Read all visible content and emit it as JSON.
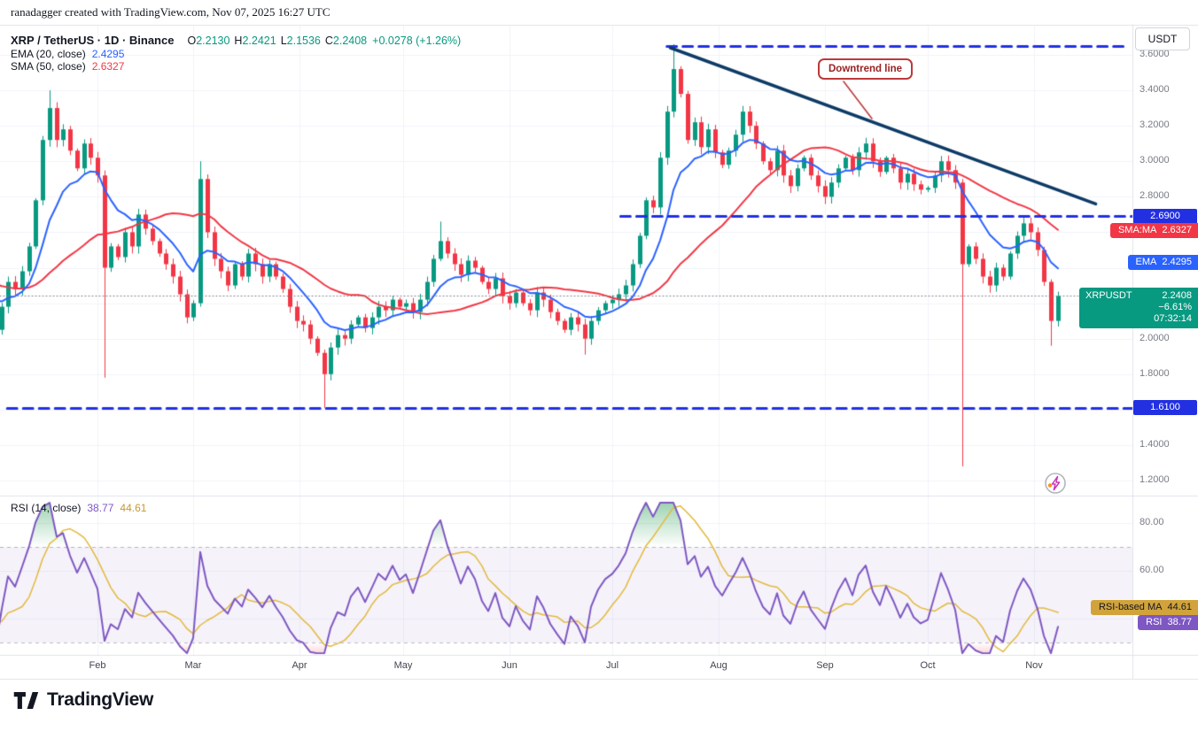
{
  "attribution": "ranadagger created with TradingView.com, Nov 07, 2025 16:27 UTC",
  "header": {
    "symbol_title": "XRP / TetherUS · 1D · Binance",
    "ohlc": {
      "open_label": "O",
      "open": "2.2130",
      "high_label": "H",
      "high": "2.2421",
      "low_label": "L",
      "low": "2.1536",
      "close_label": "C",
      "close": "2.2408",
      "change": "+0.0278 (+1.26%)"
    },
    "ema_label": "EMA (20, close)",
    "ema_value": "2.4295",
    "sma_label": "SMA (50, close)",
    "sma_value": "2.6327"
  },
  "rsi_pane": {
    "label": "RSI (14, close)",
    "value": "38.77",
    "ma_value": "44.61",
    "axis_ticks": [
      {
        "v": 80,
        "label": "80.00"
      },
      {
        "v": 60,
        "label": "60.00"
      }
    ],
    "ma_badge_label": "RSI-based MA",
    "ma_badge_value": "44.61",
    "rsi_badge_label": "RSI",
    "rsi_badge_value": "38.77"
  },
  "axis": {
    "currency": "USDT",
    "price_ticks": [
      {
        "v": 3.6,
        "label": "3.6000"
      },
      {
        "v": 3.4,
        "label": "3.4000"
      },
      {
        "v": 3.2,
        "label": "3.2000"
      },
      {
        "v": 3.0,
        "label": "3.0000"
      },
      {
        "v": 2.8,
        "label": "2.8000"
      },
      {
        "v": 2.0,
        "label": "2.0000"
      },
      {
        "v": 1.8,
        "label": "1.8000"
      },
      {
        "v": 1.4,
        "label": "1.4000"
      },
      {
        "v": 1.2,
        "label": "1.2000"
      }
    ]
  },
  "badges": {
    "upper_level": {
      "v": 2.69,
      "label": "2.6900"
    },
    "sma": {
      "name": "SMA:MA",
      "v": 2.6327,
      "label": "2.6327"
    },
    "ema": {
      "name": "EMA",
      "v": 2.4295,
      "label": "2.4295"
    },
    "price": {
      "name": "XRPUSDT",
      "v": 2.2408,
      "label": "2.2408",
      "change": "−6.61%",
      "countdown": "07:32:14"
    },
    "lower_level": {
      "v": 1.61,
      "label": "1.6100"
    }
  },
  "annotation": {
    "label": "Downtrend line"
  },
  "footer": {
    "brand": "TradingView"
  },
  "colors": {
    "background": "#ffffff",
    "grid": "#f0f3fa",
    "separator": "#e0e3eb",
    "axis_text": "#787b86",
    "text": "#131722",
    "candle_up": "#089981",
    "candle_down": "#f23645",
    "ema": "#2962ff",
    "sma": "#f23645",
    "level_line": "#2230e2",
    "level_badge": "#2230e2",
    "trendline": "#0d3b66",
    "price_badge": "#089981",
    "rsi_line": "#7e57c2",
    "rsi_ma_line": "#e2b93b",
    "rsi_ma_value_text": "#c7992f",
    "rsi_ma_badge": "#d1a33a",
    "rsi_band": "rgba(126,87,194,0.08)",
    "rsi_over_fill": "rgba(46,160,87,0.45)",
    "rsi_under_fill": "rgba(242,54,69,0.35)",
    "current_price_line": "#787b86",
    "callout": "#bb3a3a",
    "callout_text": "#992222"
  },
  "chart_data": {
    "type": "candlestick",
    "symbol": "XRPUSDT",
    "timeframe": "1D",
    "exchange": "Binance",
    "ylim": [
      1.12,
      3.77
    ],
    "price_gridlines": [
      3.6,
      3.4,
      3.2,
      3.0,
      2.8,
      2.6,
      2.4,
      2.2,
      2.0,
      1.8,
      1.6,
      1.4,
      1.2
    ],
    "x_axis": {
      "unit": "day-of-year-2025",
      "month_ticks": [
        {
          "label": "Feb",
          "day": 31
        },
        {
          "label": "Mar",
          "day": 59
        },
        {
          "label": "Apr",
          "day": 90
        },
        {
          "label": "May",
          "day": 120
        },
        {
          "label": "Jun",
          "day": 151
        },
        {
          "label": "Jul",
          "day": 181
        },
        {
          "label": "Aug",
          "day": 212
        },
        {
          "label": "Sep",
          "day": 243
        },
        {
          "label": "Oct",
          "day": 273
        },
        {
          "label": "Nov",
          "day": 304
        }
      ]
    },
    "bar_days_each": 2,
    "warmup_closes": [
      2.52,
      2.46,
      2.5,
      2.44,
      2.4,
      2.36,
      2.42,
      2.38,
      2.33,
      2.28,
      2.34,
      2.3,
      2.26,
      2.32,
      2.28,
      2.23,
      2.3,
      2.34,
      2.28,
      2.25,
      2.21,
      2.27,
      2.31,
      2.24,
      2.15
    ],
    "closes": [
      2.05,
      2.18,
      2.32,
      2.28,
      2.38,
      2.52,
      2.78,
      3.12,
      3.3,
      3.12,
      3.18,
      3.06,
      2.96,
      3.1,
      3.02,
      2.92,
      2.4,
      2.52,
      2.46,
      2.6,
      2.52,
      2.7,
      2.62,
      2.55,
      2.48,
      2.42,
      2.35,
      2.25,
      2.12,
      2.2,
      2.9,
      2.6,
      2.45,
      2.38,
      2.3,
      2.42,
      2.35,
      2.48,
      2.42,
      2.35,
      2.42,
      2.35,
      2.28,
      2.18,
      2.1,
      2.08,
      2.0,
      1.92,
      1.8,
      1.95,
      2.02,
      2.0,
      2.08,
      2.12,
      2.06,
      2.12,
      2.18,
      2.16,
      2.22,
      2.18,
      2.2,
      2.15,
      2.22,
      2.32,
      2.45,
      2.55,
      2.48,
      2.42,
      2.36,
      2.44,
      2.4,
      2.32,
      2.28,
      2.34,
      2.24,
      2.2,
      2.26,
      2.2,
      2.16,
      2.26,
      2.22,
      2.15,
      2.1,
      2.05,
      2.12,
      2.08,
      2.0,
      2.1,
      2.16,
      2.2,
      2.22,
      2.25,
      2.3,
      2.42,
      2.58,
      2.78,
      2.74,
      3.02,
      3.28,
      3.52,
      3.38,
      3.12,
      3.22,
      3.08,
      3.18,
      3.05,
      2.98,
      3.06,
      3.15,
      3.28,
      3.2,
      3.1,
      3.0,
      2.95,
      3.06,
      2.92,
      2.86,
      2.96,
      3.02,
      2.92,
      2.86,
      2.8,
      2.88,
      2.96,
      3.02,
      2.95,
      3.05,
      3.1,
      3.0,
      2.94,
      3.02,
      2.96,
      2.88,
      2.93,
      2.87,
      2.84,
      2.85,
      2.92,
      3.0,
      2.95,
      2.88,
      2.42,
      2.52,
      2.45,
      2.35,
      2.3,
      2.4,
      2.35,
      2.48,
      2.58,
      2.65,
      2.6,
      2.5,
      2.32,
      2.1,
      2.24
    ],
    "wick_overrides": {
      "8": {
        "h": 3.4
      },
      "16": {
        "l": 1.78
      },
      "30": {
        "h": 3.0
      },
      "48": {
        "l": 1.61
      },
      "65": {
        "h": 2.66
      },
      "86": {
        "l": 1.91
      },
      "99": {
        "h": 3.66
      },
      "141": {
        "l": 1.28
      },
      "154": {
        "l": 1.96
      }
    },
    "indicators": {
      "ema_period_days": 20,
      "sma_period_days": 50,
      "rsi_period_days": 14,
      "rsi_ma_period_days": 14
    },
    "levels": [
      {
        "price": 3.65,
        "style": "dashed",
        "from_day": 197,
        "to_day": 330
      },
      {
        "price": 2.69,
        "style": "dashed",
        "from_day": 183.5,
        "to_day": 334
      },
      {
        "price": 1.61,
        "style": "dashed",
        "from_day": 4.7,
        "to_day": 334
      }
    ],
    "trendline": {
      "from": {
        "day": 198,
        "price": 3.64
      },
      "to": {
        "day": 322,
        "price": 2.76
      },
      "label": "Downtrend line"
    },
    "current_price": 2.2408,
    "rsi": {
      "period_bars": 7,
      "ma_period_bars": 7,
      "upper": 70,
      "lower": 30,
      "grid_ticks": [
        80,
        60,
        40
      ],
      "ylim": [
        25,
        91
      ],
      "current": 38.77,
      "ma_current": 44.61
    }
  }
}
